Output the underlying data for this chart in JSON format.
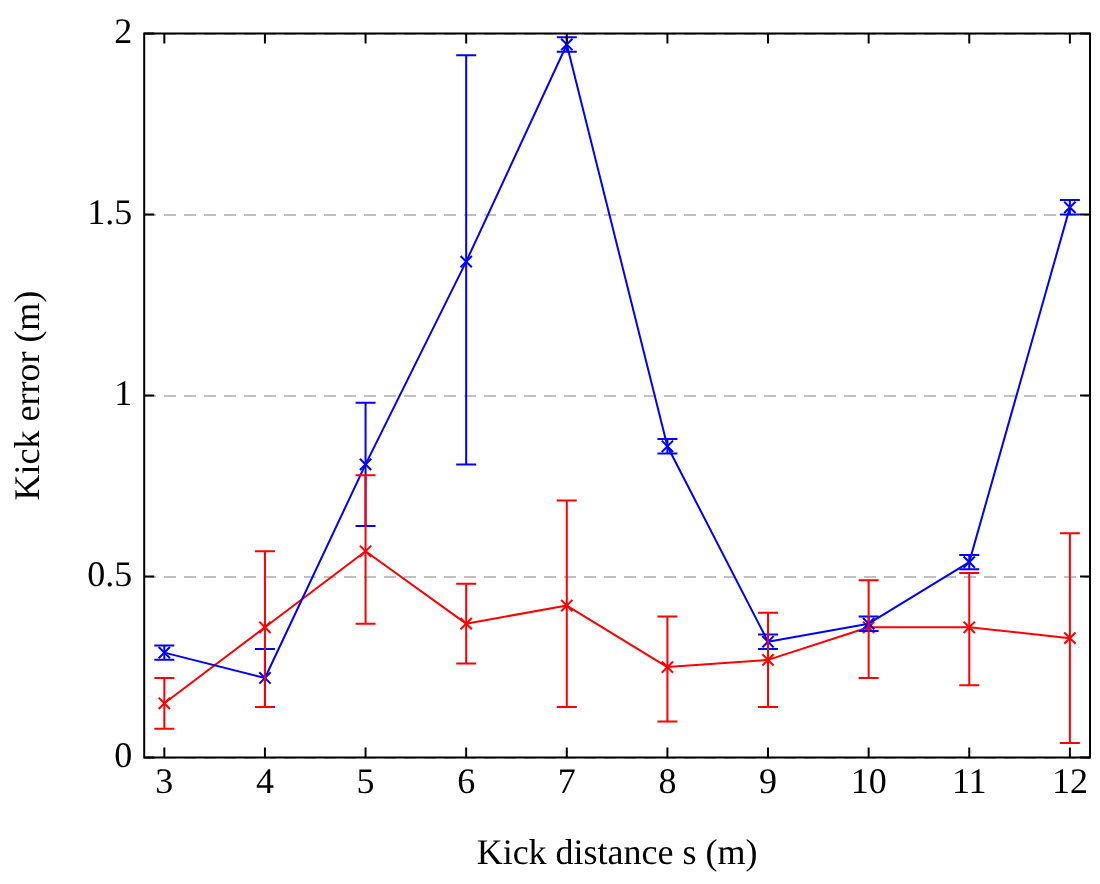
{
  "chart_data": {
    "type": "line",
    "xlabel": "Kick distance s (m)",
    "ylabel": "Kick error (m)",
    "x": [
      3,
      4,
      5,
      6,
      7,
      8,
      9,
      10,
      11,
      12
    ],
    "series": [
      {
        "color": "#0000ff",
        "values": [
          0.29,
          0.22,
          0.81,
          1.37,
          1.97,
          0.86,
          0.32,
          0.37,
          0.54,
          1.52
        ],
        "errors": [
          0.02,
          [
            0.14,
            0.3
          ],
          [
            0.64,
            0.98
          ],
          [
            0.81,
            1.94
          ],
          0.02,
          0.02,
          0.02,
          0.02,
          0.02,
          0.02
        ]
      },
      {
        "color": "#ff0000",
        "values": [
          0.15,
          0.36,
          0.57,
          0.37,
          0.42,
          0.25,
          0.27,
          0.36,
          0.36,
          0.33
        ],
        "errors": [
          [
            0.08,
            0.22
          ],
          [
            0.14,
            0.57
          ],
          [
            0.37,
            0.78
          ],
          [
            0.26,
            0.48
          ],
          [
            0.14,
            0.71
          ],
          [
            0.1,
            0.39
          ],
          [
            0.14,
            0.4
          ],
          [
            0.22,
            0.49
          ],
          [
            0.2,
            0.51
          ],
          [
            0.04,
            0.62
          ]
        ]
      }
    ],
    "xlim": [
      2.8,
      12.2
    ],
    "xticks": [
      3,
      4,
      5,
      6,
      7,
      8,
      9,
      10,
      11,
      12
    ],
    "ylim": [
      0,
      2
    ],
    "yticks": [
      0,
      0.5,
      1,
      1.5,
      2
    ],
    "grid": "y",
    "marker": "cross",
    "line_style": "solid",
    "legend": false
  }
}
